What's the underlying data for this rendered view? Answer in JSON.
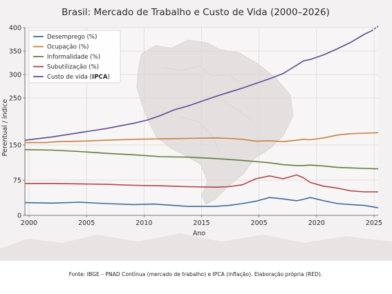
{
  "chart_data": {
    "type": "line",
    "title": "Brasil: Mercado de Trabalho e Custo de Vida (2000–2026)",
    "xlabel": "Ano",
    "ylabel": "Perentual / índice",
    "xlim": [
      2000,
      2026
    ],
    "ylim": [
      0,
      400
    ],
    "x_ticks": [
      "2000",
      "2005",
      "2010",
      "2015",
      "2005",
      "2020",
      "2025"
    ],
    "y_ticks": [
      0,
      75,
      150,
      250,
      300,
      350,
      400
    ],
    "y_tick_labels": [
      "0",
      "75",
      "150",
      "250",
      "300",
      "350",
      "400"
    ],
    "grid": true,
    "legend_position": "top-left",
    "background": "faded map of Brazil",
    "series": [
      {
        "name": "Desemprego (%)",
        "color": "#3d6a99",
        "x": [
          2000,
          2002,
          2004,
          2006,
          2008,
          2009.5,
          2011,
          2012,
          2014,
          2015,
          2016,
          2017,
          2018,
          2019,
          2020,
          2020.5,
          2021,
          2022,
          2023,
          2024,
          2025,
          2026
        ],
        "values": [
          27,
          26,
          28,
          25,
          23,
          24,
          21,
          19,
          19,
          21,
          25,
          30,
          38,
          35,
          31,
          34,
          38,
          31,
          25,
          23,
          21,
          16
        ]
      },
      {
        "name": "Ocupação (%)",
        "color": "#c9803d",
        "x": [
          2000,
          2001.5,
          2002.5,
          2004,
          2006,
          2008,
          2010,
          2012,
          2014,
          2015,
          2016,
          2017,
          2018,
          2019,
          2020,
          2020.5,
          2021,
          2022,
          2023,
          2024,
          2025,
          2026
        ],
        "values": [
          155,
          155,
          157,
          158,
          160,
          162,
          163,
          164,
          165,
          164,
          162,
          158,
          159,
          157,
          160,
          162,
          161,
          165,
          171,
          174,
          175,
          176
        ]
      },
      {
        "name": "Informalidade (%)",
        "color": "#5f7d3a",
        "x": [
          2000,
          2002,
          2004,
          2006,
          2008,
          2010,
          2012,
          2014,
          2016,
          2018,
          2019,
          2020,
          2020.5,
          2021,
          2022,
          2023,
          2024,
          2025,
          2026
        ],
        "values": [
          140,
          139,
          136,
          132,
          129,
          125,
          124,
          121,
          117,
          112,
          108,
          106,
          106,
          107,
          105,
          102,
          101,
          100,
          99
        ]
      },
      {
        "name": "Subutilização (%)",
        "color": "#b04242",
        "x": [
          2000,
          2002,
          2004,
          2006,
          2008,
          2010,
          2012,
          2014,
          2015,
          2016,
          2017,
          2018,
          2019,
          2020,
          2020.5,
          2021,
          2022,
          2023,
          2024,
          2025,
          2026
        ],
        "values": [
          68,
          68,
          67,
          66,
          64,
          63,
          61,
          60,
          61,
          65,
          78,
          84,
          78,
          86,
          80,
          70,
          62,
          58,
          52,
          50,
          50
        ]
      },
      {
        "name": "Custo de vida (IPCA)",
        "color": "#5e4a8f",
        "x": [
          2000,
          2002,
          2004,
          2006,
          2008,
          2009,
          2010,
          2011,
          2012,
          2013,
          2014,
          2015,
          2016,
          2017,
          2018,
          2019,
          2019.5,
          2020,
          2020.5,
          2021,
          2022,
          2023,
          2024,
          2025,
          2025.5
        ],
        "values": [
          160,
          167,
          176,
          185,
          196,
          203,
          213,
          225,
          233,
          243,
          253,
          262,
          271,
          281,
          291,
          302,
          311,
          320,
          329,
          332,
          342,
          355,
          369,
          386,
          393
        ],
        "projection": {
          "x": [
            2025.5,
            2026
          ],
          "values": [
            393,
            403
          ]
        }
      }
    ],
    "legend_labels": {
      "0": "Desemprego (%)",
      "1": "Ocupação (%)",
      "2": "Informalidade (%)",
      "3": "Subutilização (%)",
      "4_prefix": "Custo de vida (",
      "4_bold": "IPCA",
      "4_suffix": ")"
    }
  },
  "caption": "Fonte: IBGE – PNAD Contínua (mercado de trabalho) e IPCA (inflação). Elaboração própria (RED)."
}
